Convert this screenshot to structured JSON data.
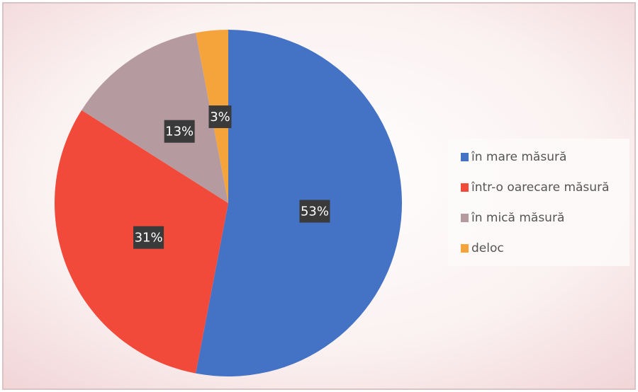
{
  "chart_data": {
    "type": "pie",
    "categories": [
      "în mare măsură",
      "într-o oarecare măsură",
      "în mică măsură",
      "deloc"
    ],
    "values": [
      53,
      31,
      13,
      3
    ],
    "value_labels": [
      "53%",
      "31%",
      "13%",
      "3%"
    ],
    "colors": [
      "#4472c4",
      "#f24a3a",
      "#b59aa0",
      "#f5a43b"
    ],
    "legend": "right"
  }
}
